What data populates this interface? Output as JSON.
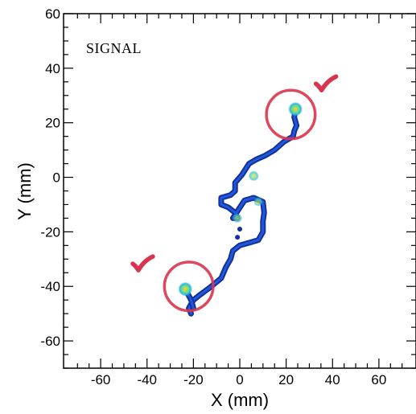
{
  "chart_data": {
    "type": "heatmap",
    "xlabel": "X (mm)",
    "ylabel": "Y (mm)",
    "xlim": [
      -76,
      76
    ],
    "ylim": [
      -70,
      60
    ],
    "xticks": [
      -60,
      -40,
      -20,
      0,
      20,
      40,
      60
    ],
    "yticks": [
      -60,
      -40,
      -20,
      0,
      20,
      40,
      60
    ],
    "annotation": "SIGNAL",
    "grid": false,
    "track": [
      [
        24,
        25
      ],
      [
        23.5,
        22
      ],
      [
        24.5,
        19
      ],
      [
        23.5,
        17
      ],
      [
        23,
        15
      ],
      [
        19,
        13
      ],
      [
        15,
        10
      ],
      [
        11,
        8
      ],
      [
        7,
        6.5
      ],
      [
        4,
        5
      ],
      [
        1,
        1
      ],
      [
        -2,
        -2
      ],
      [
        -2,
        -5
      ],
      [
        -4,
        -6.5
      ],
      [
        -8,
        -7.5
      ],
      [
        -8,
        -10
      ],
      [
        -5,
        -11
      ],
      [
        -2,
        -13
      ],
      [
        -1,
        -15
      ],
      [
        -3,
        -15
      ],
      [
        2,
        -8.5
      ],
      [
        6,
        -7.5
      ],
      [
        10,
        -9
      ],
      [
        10.5,
        -13
      ],
      [
        10,
        -16
      ],
      [
        10,
        -20
      ],
      [
        8,
        -23
      ],
      [
        4,
        -24
      ],
      [
        0,
        -25
      ],
      [
        -3,
        -27
      ],
      [
        -4,
        -30
      ],
      [
        -6,
        -33
      ],
      [
        -8,
        -37
      ],
      [
        -13,
        -40.5
      ],
      [
        -17,
        -43
      ],
      [
        -20,
        -45
      ],
      [
        -22,
        -48
      ],
      [
        -21,
        -50
      ]
    ],
    "branch": [
      [
        -23.5,
        -41
      ],
      [
        -21,
        -45
      ],
      [
        -20,
        -48
      ]
    ],
    "hotspots": [
      {
        "x": 24,
        "y": 25,
        "intensity": 1.0
      },
      {
        "x": -23.5,
        "y": -41,
        "intensity": 1.0
      },
      {
        "x": 6,
        "y": 0.5,
        "intensity": 0.5
      },
      {
        "x": -1,
        "y": -15,
        "intensity": 0.4
      },
      {
        "x": 8,
        "y": -9,
        "intensity": 0.35
      }
    ],
    "markers": [
      {
        "cx": 22,
        "cy": 23,
        "r": 10.5,
        "color": "#d9344d"
      },
      {
        "cx": -22,
        "cy": -40,
        "r": 10.5,
        "color": "#d9344d"
      }
    ],
    "check_marks": [
      {
        "x": 37,
        "y": 34,
        "color": "#d9344d"
      },
      {
        "x": -42,
        "y": -32,
        "color": "#d9344d"
      }
    ],
    "colors": {
      "track_outer": "#152fa0",
      "track_inner": "#1f59d6",
      "hot_mid": "#2fb6e0",
      "hot_peak": "#ffd21f"
    }
  }
}
